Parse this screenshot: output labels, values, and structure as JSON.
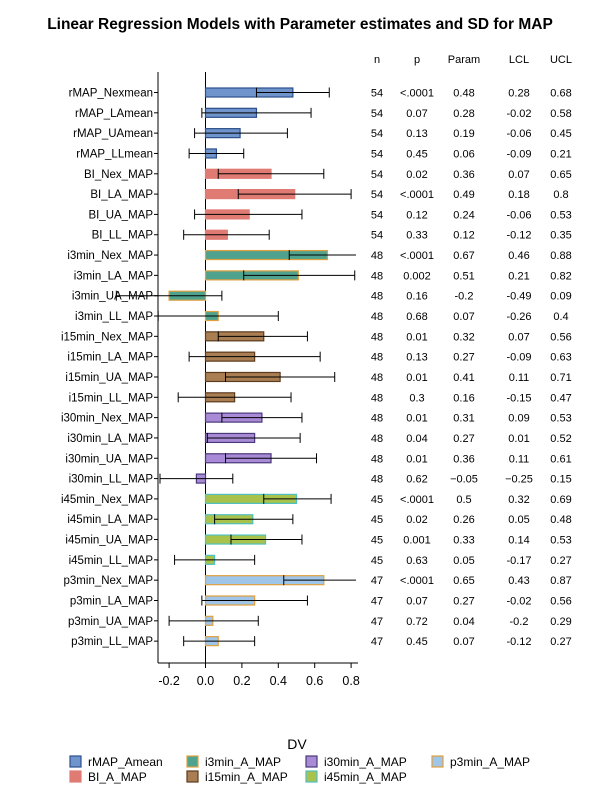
{
  "chart_data": {
    "type": "bar",
    "orientation": "horizontal",
    "title": "Linear Regression Models with Parameter estimates and SD for MAP",
    "xlabel": "",
    "ylabel": "",
    "xlim": [
      -0.2,
      0.8
    ],
    "xticks": [
      -0.2,
      0.0,
      0.2,
      0.4,
      0.6,
      0.8
    ],
    "xtick_labels": [
      "-0.2",
      "0.0",
      "0.2",
      "0.4",
      "0.6",
      "0.8"
    ],
    "table_headers": [
      "n",
      "p",
      "Param",
      "LCL",
      "UCL"
    ],
    "legend_title": "DV",
    "legend": [
      {
        "label": "rMAP_Amean",
        "fill": "#6f95cc",
        "edge": "#2c4f8c"
      },
      {
        "label": "BI_A_MAP",
        "fill": "#e07b74",
        "edge": "#e07b74"
      },
      {
        "label": "i3min_A_MAP",
        "fill": "#4fa38e",
        "edge": "#e0a040"
      },
      {
        "label": "i15min_A_MAP",
        "fill": "#a97e52",
        "edge": "#5c3b1e"
      },
      {
        "label": "i30min_A_MAP",
        "fill": "#a88ad6",
        "edge": "#4a3a7a"
      },
      {
        "label": "i45min_A_MAP",
        "fill": "#a9c24c",
        "edge": "#4fc0c0"
      },
      {
        "label": "p3min_A_MAP",
        "fill": "#9fc5e8",
        "edge": "#e0a040"
      }
    ],
    "rows": [
      {
        "label": "rMAP_Nexmean",
        "group": 0,
        "n": "54",
        "p": "<.0001",
        "param": 0.48,
        "lcl": 0.28,
        "ucl": 0.68,
        "param_text": "0.48",
        "lcl_text": "0.28",
        "ucl_text": "0.68"
      },
      {
        "label": "rMAP_LAmean",
        "group": 0,
        "n": "54",
        "p": "0.07",
        "param": 0.28,
        "lcl": -0.02,
        "ucl": 0.58,
        "param_text": "0.28",
        "lcl_text": "-0.02",
        "ucl_text": "0.58"
      },
      {
        "label": "rMAP_UAmean",
        "group": 0,
        "n": "54",
        "p": "0.13",
        "param": 0.19,
        "lcl": -0.06,
        "ucl": 0.45,
        "param_text": "0.19",
        "lcl_text": "-0.06",
        "ucl_text": "0.45"
      },
      {
        "label": "rMAP_LLmean",
        "group": 0,
        "n": "54",
        "p": "0.45",
        "param": 0.06,
        "lcl": -0.09,
        "ucl": 0.21,
        "param_text": "0.06",
        "lcl_text": "-0.09",
        "ucl_text": "0.21"
      },
      {
        "label": "BI_Nex_MAP",
        "group": 1,
        "n": "54",
        "p": "0.02",
        "param": 0.36,
        "lcl": 0.07,
        "ucl": 0.65,
        "param_text": "0.36",
        "lcl_text": "0.07",
        "ucl_text": "0.65"
      },
      {
        "label": "BI_LA_MAP",
        "group": 1,
        "n": "54",
        "p": "<.0001",
        "param": 0.49,
        "lcl": 0.18,
        "ucl": 0.8,
        "param_text": "0.49",
        "lcl_text": "0.18",
        "ucl_text": "0.8"
      },
      {
        "label": "BI_UA_MAP",
        "group": 1,
        "n": "54",
        "p": "0.12",
        "param": 0.24,
        "lcl": -0.06,
        "ucl": 0.53,
        "param_text": "0.24",
        "lcl_text": "-0.06",
        "ucl_text": "0.53"
      },
      {
        "label": "BI_LL_MAP",
        "group": 1,
        "n": "54",
        "p": "0.33",
        "param": 0.12,
        "lcl": -0.12,
        "ucl": 0.35,
        "param_text": "0.12",
        "lcl_text": "-0.12",
        "ucl_text": "0.35"
      },
      {
        "label": "i3min_Nex_MAP",
        "group": 2,
        "n": "48",
        "p": "<.0001",
        "param": 0.67,
        "lcl": 0.46,
        "ucl": 0.88,
        "param_text": "0.67",
        "lcl_text": "0.46",
        "ucl_text": "0.88"
      },
      {
        "label": "i3min_LA_MAP",
        "group": 2,
        "n": "48",
        "p": "0.002",
        "param": 0.51,
        "lcl": 0.21,
        "ucl": 0.82,
        "param_text": "0.51",
        "lcl_text": "0.21",
        "ucl_text": "0.82"
      },
      {
        "label": "i3min_UA_MAP",
        "group": 2,
        "n": "48",
        "p": "0.16",
        "param": -0.2,
        "lcl": -0.49,
        "ucl": 0.09,
        "param_text": "-0.2",
        "lcl_text": "-0.49",
        "ucl_text": "0.09"
      },
      {
        "label": "i3min_LL_MAP",
        "group": 2,
        "n": "48",
        "p": "0.68",
        "param": 0.07,
        "lcl": -0.26,
        "ucl": 0.4,
        "param_text": "0.07",
        "lcl_text": "-0.26",
        "ucl_text": "0.4"
      },
      {
        "label": "i15min_Nex_MAP",
        "group": 3,
        "n": "48",
        "p": "0.01",
        "param": 0.32,
        "lcl": 0.07,
        "ucl": 0.56,
        "param_text": "0.32",
        "lcl_text": "0.07",
        "ucl_text": "0.56"
      },
      {
        "label": "i15min_LA_MAP",
        "group": 3,
        "n": "48",
        "p": "0.13",
        "param": 0.27,
        "lcl": -0.09,
        "ucl": 0.63,
        "param_text": "0.27",
        "lcl_text": "-0.09",
        "ucl_text": "0.63"
      },
      {
        "label": "i15min_UA_MAP",
        "group": 3,
        "n": "48",
        "p": "0.01",
        "param": 0.41,
        "lcl": 0.11,
        "ucl": 0.71,
        "param_text": "0.41",
        "lcl_text": "0.11",
        "ucl_text": "0.71"
      },
      {
        "label": "i15min_LL_MAP",
        "group": 3,
        "n": "48",
        "p": "0.3",
        "param": 0.16,
        "lcl": -0.15,
        "ucl": 0.47,
        "param_text": "0.16",
        "lcl_text": "-0.15",
        "ucl_text": "0.47"
      },
      {
        "label": "i30min_Nex_MAP",
        "group": 4,
        "n": "48",
        "p": "0.01",
        "param": 0.31,
        "lcl": 0.09,
        "ucl": 0.53,
        "param_text": "0.31",
        "lcl_text": "0.09",
        "ucl_text": "0.53"
      },
      {
        "label": "i30min_LA_MAP",
        "group": 4,
        "n": "48",
        "p": "0.04",
        "param": 0.27,
        "lcl": 0.01,
        "ucl": 0.52,
        "param_text": "0.27",
        "lcl_text": "0.01",
        "ucl_text": "0.52"
      },
      {
        "label": "i30min_UA_MAP",
        "group": 4,
        "n": "48",
        "p": "0.01",
        "param": 0.36,
        "lcl": 0.11,
        "ucl": 0.61,
        "param_text": "0.36",
        "lcl_text": "0.11",
        "ucl_text": "0.61"
      },
      {
        "label": "i30min_LL_MAP",
        "group": 4,
        "n": "48",
        "p": "0.62",
        "param": -0.05,
        "lcl": -0.25,
        "ucl": 0.15,
        "param_text": "−0.05",
        "lcl_text": "−0.25",
        "ucl_text": "0.15"
      },
      {
        "label": "i45min_Nex_MAP",
        "group": 5,
        "n": "45",
        "p": "<.0001",
        "param": 0.5,
        "lcl": 0.32,
        "ucl": 0.69,
        "param_text": "0.5",
        "lcl_text": "0.32",
        "ucl_text": "0.69"
      },
      {
        "label": "i45min_LA_MAP",
        "group": 5,
        "n": "45",
        "p": "0.02",
        "param": 0.26,
        "lcl": 0.05,
        "ucl": 0.48,
        "param_text": "0.26",
        "lcl_text": "0.05",
        "ucl_text": "0.48"
      },
      {
        "label": "i45min_UA_MAP",
        "group": 5,
        "n": "45",
        "p": "0.001",
        "param": 0.33,
        "lcl": 0.14,
        "ucl": 0.53,
        "param_text": "0.33",
        "lcl_text": "0.14",
        "ucl_text": "0.53"
      },
      {
        "label": "i45min_LL_MAP",
        "group": 5,
        "n": "45",
        "p": "0.63",
        "param": 0.05,
        "lcl": -0.17,
        "ucl": 0.27,
        "param_text": "0.05",
        "lcl_text": "-0.17",
        "ucl_text": "0.27"
      },
      {
        "label": "p3min_Nex_MAP",
        "group": 6,
        "n": "47",
        "p": "<.0001",
        "param": 0.65,
        "lcl": 0.43,
        "ucl": 0.87,
        "param_text": "0.65",
        "lcl_text": "0.43",
        "ucl_text": "0.87"
      },
      {
        "label": "p3min_LA_MAP",
        "group": 6,
        "n": "47",
        "p": "0.07",
        "param": 0.27,
        "lcl": -0.02,
        "ucl": 0.56,
        "param_text": "0.27",
        "lcl_text": "-0.02",
        "ucl_text": "0.56"
      },
      {
        "label": "p3min_UA_MAP",
        "group": 6,
        "n": "47",
        "p": "0.72",
        "param": 0.04,
        "lcl": -0.2,
        "ucl": 0.29,
        "param_text": "0.04",
        "lcl_text": "-0.2",
        "ucl_text": "0.29"
      },
      {
        "label": "p3min_LL_MAP",
        "group": 6,
        "n": "47",
        "p": "0.45",
        "param": 0.07,
        "lcl": -0.12,
        "ucl": 0.27,
        "param_text": "0.07",
        "lcl_text": "-0.12",
        "ucl_text": "0.27"
      }
    ]
  }
}
